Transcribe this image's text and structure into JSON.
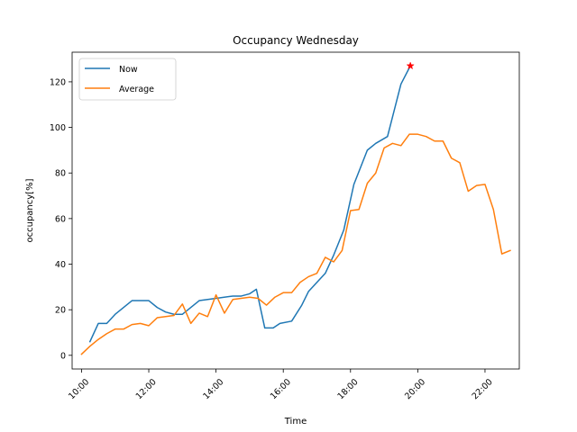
{
  "chart_data": {
    "type": "line",
    "title": "Occupancy Wednesday",
    "xlabel": "Time",
    "ylabel": "occupancy[%]",
    "xlim": [
      9.72,
      23.02
    ],
    "ylim": [
      -6,
      133
    ],
    "xticks": [
      10,
      12,
      14,
      16,
      18,
      20,
      22
    ],
    "xtick_labels": [
      "10:00",
      "12:00",
      "14:00",
      "16:00",
      "18:00",
      "20:00",
      "22:00"
    ],
    "yticks": [
      0,
      20,
      40,
      60,
      80,
      100,
      120
    ],
    "ytick_labels": [
      "0",
      "20",
      "40",
      "60",
      "80",
      "100",
      "120"
    ],
    "grid": false,
    "legend": "upper-left",
    "colors": {
      "now": "#1f77b4",
      "average": "#ff7f0e",
      "marker": "#ff0000",
      "axes": "#000000"
    },
    "series": [
      {
        "name": "Now",
        "color": "#1f77b4",
        "x": [
          10.25,
          10.5,
          10.75,
          11.0,
          11.5,
          11.75,
          12.0,
          12.25,
          12.5,
          12.75,
          13.0,
          13.5,
          14.0,
          14.5,
          14.75,
          15.0,
          15.2,
          15.45,
          15.7,
          15.9,
          16.25,
          16.55,
          16.75,
          17.25,
          17.5,
          17.8,
          18.1,
          18.5,
          18.75,
          19.1,
          19.5,
          19.78
        ],
        "y": [
          6,
          14,
          14,
          18,
          24,
          24,
          24,
          21,
          19,
          18,
          18,
          24,
          25,
          26,
          26,
          27,
          29,
          12,
          12,
          14,
          15,
          22,
          28,
          36,
          44,
          55,
          75,
          90,
          93,
          96,
          119,
          127
        ]
      },
      {
        "name": "Average",
        "color": "#ff7f0e",
        "x": [
          10.0,
          10.25,
          10.5,
          10.75,
          11.0,
          11.25,
          11.5,
          11.75,
          12.0,
          12.25,
          12.5,
          12.75,
          13.0,
          13.25,
          13.5,
          13.75,
          14.0,
          14.25,
          14.5,
          14.75,
          15.0,
          15.25,
          15.5,
          15.75,
          16.0,
          16.25,
          16.5,
          16.75,
          17.0,
          17.25,
          17.5,
          17.75,
          18.0,
          18.25,
          18.5,
          18.75,
          19.0,
          19.25,
          19.5,
          19.75,
          20.0,
          20.25,
          20.5,
          20.75,
          21.0,
          21.25,
          21.5,
          21.75,
          22.0,
          22.25,
          22.5,
          22.75
        ],
        "y": [
          0.5,
          4,
          7,
          9.5,
          11.5,
          11.5,
          13.5,
          14,
          13,
          16.5,
          17,
          17.5,
          22.5,
          14,
          18.5,
          17,
          26.5,
          18.5,
          24.5,
          25,
          25.5,
          25,
          22,
          25.5,
          27.5,
          27.5,
          32,
          34.5,
          36,
          43,
          41,
          46,
          63.5,
          64,
          75.5,
          80,
          91,
          93,
          92,
          97,
          97,
          96,
          94,
          94,
          86.5,
          84.5,
          72,
          74.5,
          75,
          64,
          44.5,
          46
        ]
      }
    ],
    "markers": [
      {
        "name": "current",
        "x": 19.78,
        "y": 127,
        "color": "#ff0000",
        "symbol": "star"
      }
    ]
  }
}
